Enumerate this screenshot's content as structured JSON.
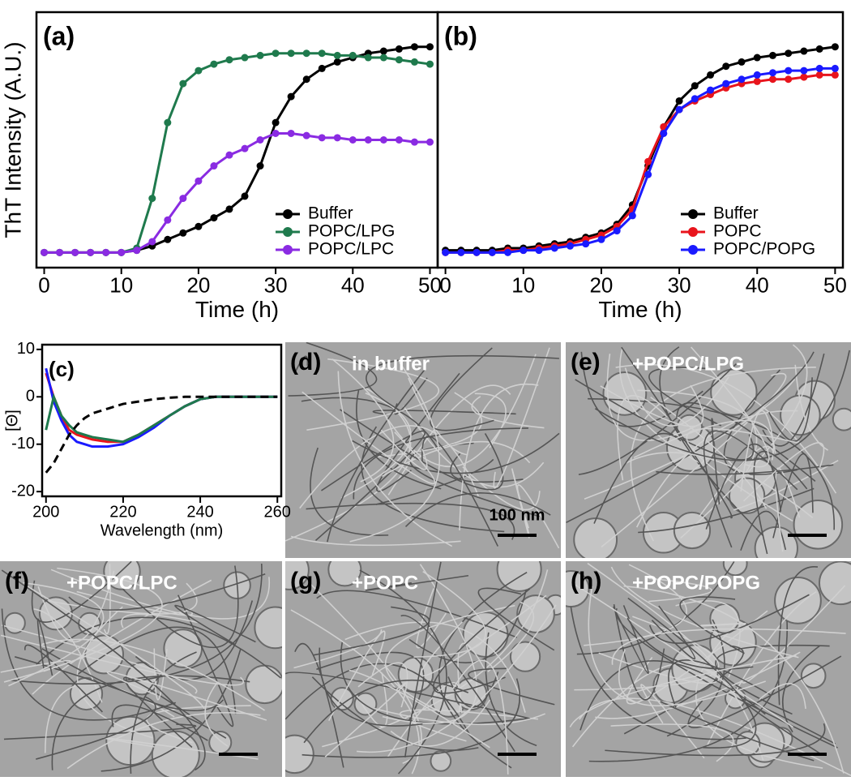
{
  "chart_data": [
    {
      "type": "line",
      "panel_label": "(a)",
      "x_label": "Time (h)",
      "y_label": "ThT Intensity (A.U.)",
      "x": [
        0,
        2,
        4,
        6,
        8,
        10,
        12,
        14,
        16,
        18,
        20,
        22,
        24,
        26,
        28,
        30,
        32,
        34,
        36,
        38,
        40,
        42,
        44,
        46,
        48,
        50
      ],
      "series": [
        {
          "name": "Buffer",
          "color": "#000000",
          "values": [
            0,
            0,
            0,
            0,
            0,
            0,
            0.01,
            0.03,
            0.06,
            0.09,
            0.12,
            0.16,
            0.2,
            0.26,
            0.4,
            0.6,
            0.72,
            0.8,
            0.85,
            0.88,
            0.9,
            0.92,
            0.93,
            0.94,
            0.95,
            0.95
          ]
        },
        {
          "name": "POPC/LPG",
          "color": "#1f7a4d",
          "values": [
            0,
            0,
            0,
            0,
            0,
            0,
            0.02,
            0.25,
            0.6,
            0.78,
            0.84,
            0.87,
            0.89,
            0.9,
            0.91,
            0.92,
            0.92,
            0.92,
            0.92,
            0.91,
            0.91,
            0.9,
            0.9,
            0.89,
            0.88,
            0.87
          ]
        },
        {
          "name": "POPC/LPC",
          "color": "#8a2be2",
          "values": [
            0,
            0,
            0,
            0,
            0,
            0,
            0.01,
            0.05,
            0.15,
            0.25,
            0.33,
            0.4,
            0.45,
            0.48,
            0.52,
            0.55,
            0.55,
            0.54,
            0.53,
            0.53,
            0.52,
            0.52,
            0.52,
            0.52,
            0.51,
            0.51
          ]
        }
      ],
      "xlim": [
        -1,
        51
      ],
      "ylim": [
        -0.07,
        1.11
      ],
      "xticks": [
        0,
        10,
        20,
        30,
        40,
        50
      ],
      "markers": true,
      "legend": "lower right"
    },
    {
      "type": "line",
      "panel_label": "(b)",
      "x_label": "Time (h)",
      "x": [
        0,
        2,
        4,
        6,
        8,
        10,
        12,
        14,
        16,
        18,
        20,
        22,
        24,
        26,
        28,
        30,
        32,
        34,
        36,
        38,
        40,
        42,
        44,
        46,
        48,
        50
      ],
      "series": [
        {
          "name": "Buffer",
          "color": "#000000",
          "values": [
            0.01,
            0.01,
            0.01,
            0.01,
            0.02,
            0.02,
            0.03,
            0.04,
            0.05,
            0.07,
            0.09,
            0.13,
            0.22,
            0.4,
            0.58,
            0.7,
            0.77,
            0.82,
            0.86,
            0.88,
            0.9,
            0.91,
            0.92,
            0.93,
            0.94,
            0.95
          ]
        },
        {
          "name": "POPC",
          "color": "#e8141c",
          "values": [
            0,
            0,
            0,
            0,
            0.01,
            0.01,
            0.02,
            0.03,
            0.04,
            0.06,
            0.08,
            0.12,
            0.2,
            0.42,
            0.58,
            0.66,
            0.7,
            0.73,
            0.76,
            0.78,
            0.79,
            0.8,
            0.8,
            0.81,
            0.82,
            0.82
          ]
        },
        {
          "name": "POPC/POPG",
          "color": "#1a1aff",
          "values": [
            0,
            0,
            0,
            0,
            0,
            0.01,
            0.01,
            0.02,
            0.03,
            0.04,
            0.06,
            0.1,
            0.17,
            0.36,
            0.55,
            0.66,
            0.71,
            0.75,
            0.78,
            0.8,
            0.82,
            0.83,
            0.84,
            0.84,
            0.85,
            0.85
          ]
        }
      ],
      "xlim": [
        -1,
        51
      ],
      "ylim": [
        -0.07,
        1.11
      ],
      "xticks": [
        0,
        10,
        20,
        30,
        40,
        50
      ],
      "markers": true,
      "legend": "lower right"
    },
    {
      "type": "line",
      "panel_label": "(c)",
      "x_label": "Wavelength (nm)",
      "y_label": "[Θ]",
      "x": [
        200,
        202,
        204,
        206,
        208,
        210,
        212,
        216,
        220,
        224,
        228,
        232,
        236,
        240,
        244,
        248,
        252,
        256,
        260
      ],
      "series": [
        {
          "color": "#e8141c",
          "values": [
            5,
            0,
            -4,
            -7,
            -8,
            -8.5,
            -9,
            -9.5,
            -9.5,
            -8,
            -6,
            -4,
            -2,
            -0.5,
            0,
            0,
            0,
            0,
            0
          ]
        },
        {
          "color": "#1a1aff",
          "values": [
            6,
            -1,
            -5,
            -8,
            -9.5,
            -10,
            -10.5,
            -10.5,
            -10,
            -8.5,
            -6.5,
            -4,
            -2,
            -0.5,
            0,
            0,
            0,
            0,
            0
          ]
        },
        {
          "color": "#1f7a4d",
          "values": [
            -7,
            0,
            -4,
            -6,
            -7.5,
            -8,
            -8.5,
            -9,
            -9.5,
            -8,
            -6,
            -4,
            -2,
            -0.5,
            0,
            0,
            0,
            0,
            0
          ]
        },
        {
          "color": "#000000",
          "line_style": "dashed",
          "values": [
            -16,
            -14,
            -11,
            -8,
            -6,
            -4.5,
            -3.5,
            -2.5,
            -1.5,
            -1,
            -0.5,
            -0.2,
            0,
            0,
            0,
            0,
            0,
            0,
            0
          ]
        }
      ],
      "xlim": [
        199,
        261
      ],
      "ylim": [
        -21,
        11
      ],
      "xticks": [
        200,
        220,
        240,
        260
      ],
      "yticks": [
        -20,
        -10,
        0,
        10
      ],
      "markers": false
    }
  ],
  "images": [
    {
      "label": "(d)",
      "caption": "in buffer",
      "scale_bar": "100 nm"
    },
    {
      "label": "(e)",
      "caption": "+POPC/LPG"
    },
    {
      "label": "(f)",
      "caption": "+POPC/LPC"
    },
    {
      "label": "(g)",
      "caption": "+POPC"
    },
    {
      "label": "(h)",
      "caption": "+POPC/POPG"
    }
  ]
}
